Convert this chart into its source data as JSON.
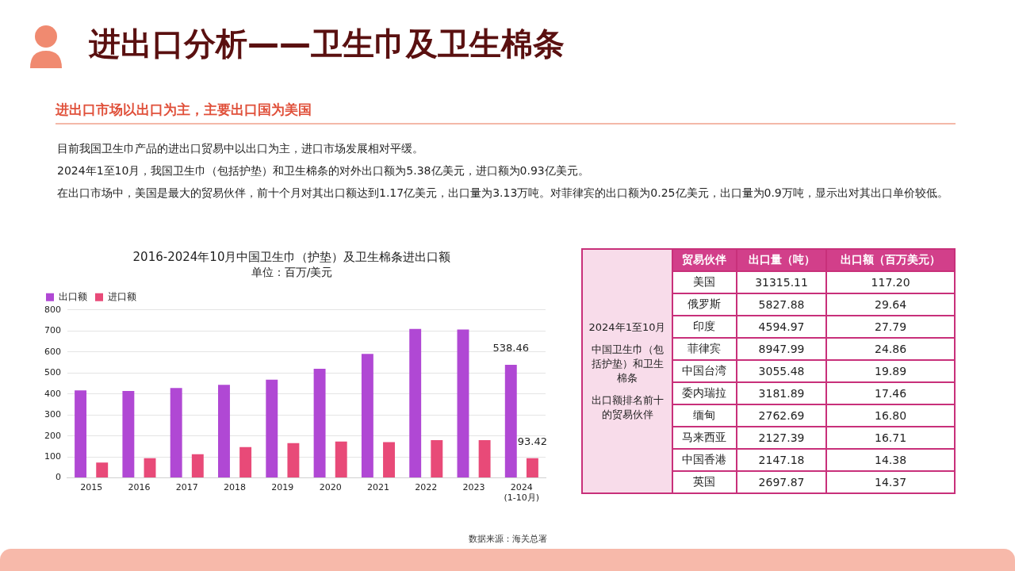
{
  "chart_data": [
    {
      "type": "other",
      "title": "进出口分析——卫生巾及卫生棉条",
      "subtitle": "进出口市场以出口为主，主要出口国为美国",
      "annotations": [
        "目前我国卫生巾产品的进出口贸易中以出口为主，进口市场发展相对平缓。",
        "2024年1至10月，我国卫生巾（包括护垫）和卫生棉条的对外出口额为5.38亿美元，进口额为0.93亿美元。",
        "在出口市场中，美国是最大的贸易伙伴，前十个月对其出口额达到1.17亿美元，出口量为3.13万吨。对菲律宾的出口额为0.25亿美元，出口量为0.9万吨，显示出对其出口单价较低。",
        "数据来源：海关总署"
      ]
    },
    {
      "type": "bar",
      "title": "2016-2024年10月中国卫生巾（护垫）及卫生棉条进出口额",
      "subtitle": "单位：百万/美元",
      "categories": [
        "2015",
        "2016",
        "2017",
        "2018",
        "2019",
        "2020",
        "2021",
        "2022",
        "2023",
        "2024\n(1-10月)"
      ],
      "series": [
        {
          "name": "出口额",
          "color": "#b048d4",
          "values": [
            417,
            414,
            428,
            443,
            468,
            520,
            591,
            710,
            707,
            538.46
          ],
          "value_labels": [
            null,
            null,
            null,
            null,
            null,
            null,
            null,
            null,
            null,
            "538.46"
          ]
        },
        {
          "name": "进口额",
          "color": "#e84a78",
          "values": [
            73,
            94,
            113,
            147,
            166,
            173,
            170,
            180,
            180,
            93.42
          ],
          "value_labels": [
            null,
            null,
            null,
            null,
            null,
            null,
            null,
            null,
            null,
            "93.42"
          ]
        }
      ],
      "ylim": [
        0,
        800
      ],
      "yticks": [
        0,
        100,
        200,
        300,
        400,
        500,
        600,
        700,
        800
      ],
      "grid": "y",
      "legend": "top left"
    },
    {
      "type": "other",
      "xlabel": "贸易伙伴",
      "annotations": [
        "2024年1至10月",
        "中国卫生巾（包括护垫）和卫生棉条",
        "出口额排名前十的贸易伙伴"
      ],
      "categories": [
        "美国",
        "俄罗斯",
        "印度",
        "菲律宾",
        "中国台湾",
        "委内瑞拉",
        "缅甸",
        "马来西亚",
        "中国香港",
        "英国"
      ],
      "series": [
        {
          "name": "出口量（吨）",
          "values": [
            31315.11,
            5827.88,
            4594.97,
            8947.99,
            3055.48,
            3181.89,
            2762.69,
            2127.39,
            2147.18,
            2697.87
          ],
          "value_labels": [
            "31315.11",
            "5827.88",
            "4594.97",
            "8947.99",
            "3055.48",
            "3181.89",
            "2762.69",
            "2127.39",
            "2147.18",
            "2697.87"
          ]
        },
        {
          "name": "出口额（百万美元）",
          "values": [
            117.2,
            29.64,
            27.79,
            24.86,
            19.89,
            17.46,
            16.8,
            16.71,
            14.38,
            14.37
          ],
          "value_labels": [
            "117.20",
            "29.64",
            "27.79",
            "24.86",
            "19.89",
            "17.46",
            "16.80",
            "16.71",
            "14.38",
            "14.37"
          ]
        }
      ],
      "data_labels": true
    }
  ]
}
